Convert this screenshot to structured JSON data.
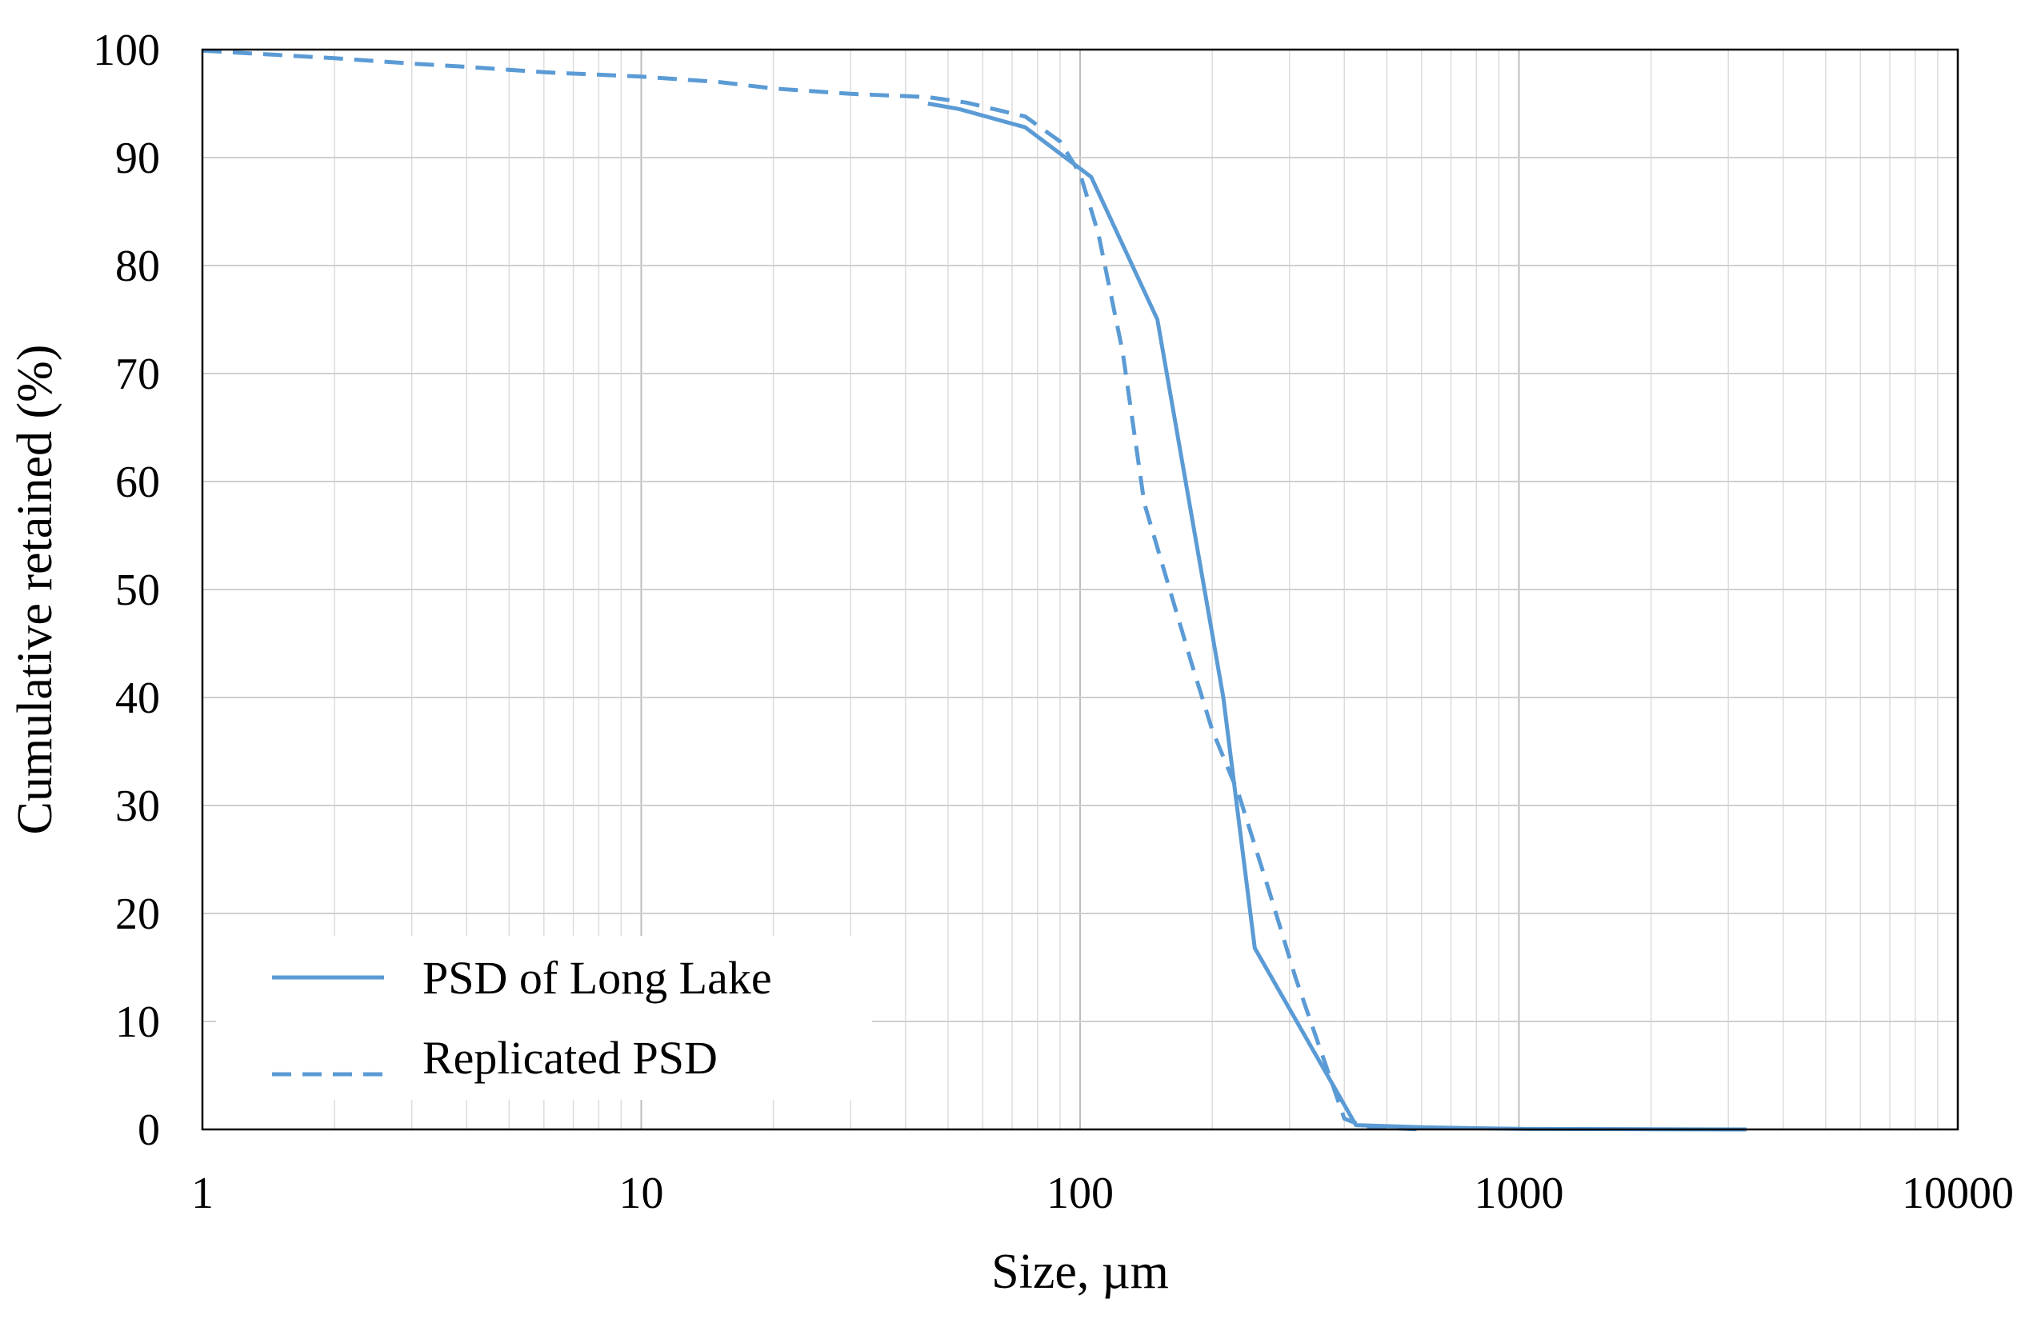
{
  "chart_data": {
    "type": "line",
    "title": "",
    "xlabel": "Size, µm",
    "ylabel": "Cumulative retained (%)",
    "x_scale": "log",
    "xlim": [
      1,
      10000
    ],
    "ylim": [
      0,
      100
    ],
    "x_ticks": [
      "1",
      "10",
      "100",
      "1000",
      "10000"
    ],
    "y_ticks": [
      "0",
      "10",
      "20",
      "30",
      "40",
      "50",
      "60",
      "70",
      "80",
      "90",
      "100"
    ],
    "grid": true,
    "legend_position": "bottom-left",
    "series": [
      {
        "name": "PSD of Long Lake",
        "style": "solid",
        "color": "#5b9bd5",
        "x": [
          45,
          53,
          75,
          106,
          150,
          212,
          250,
          425,
          600,
          850,
          1000,
          2000,
          3300
        ],
        "y": [
          95.0,
          94.5,
          92.8,
          88.2,
          75.0,
          40.0,
          16.8,
          0.4,
          0.2,
          0.1,
          0.05,
          0.02,
          0.0
        ]
      },
      {
        "name": "Replicated PSD",
        "style": "dashed",
        "color": "#5b9bd5",
        "x": [
          1,
          2,
          3,
          4,
          6,
          10,
          15,
          20,
          30,
          45,
          55,
          75,
          90,
          100,
          110,
          125,
          140,
          160,
          180,
          200,
          230,
          270,
          310,
          400,
          450,
          600
        ],
        "y": [
          99.9,
          99.2,
          98.7,
          98.4,
          97.9,
          97.5,
          97.0,
          96.4,
          95.9,
          95.6,
          95.1,
          93.8,
          91.5,
          88.5,
          83.0,
          72.0,
          58.0,
          50.0,
          43.0,
          37.0,
          31.0,
          22.0,
          14.0,
          1.0,
          0.2,
          0.0
        ]
      }
    ]
  }
}
